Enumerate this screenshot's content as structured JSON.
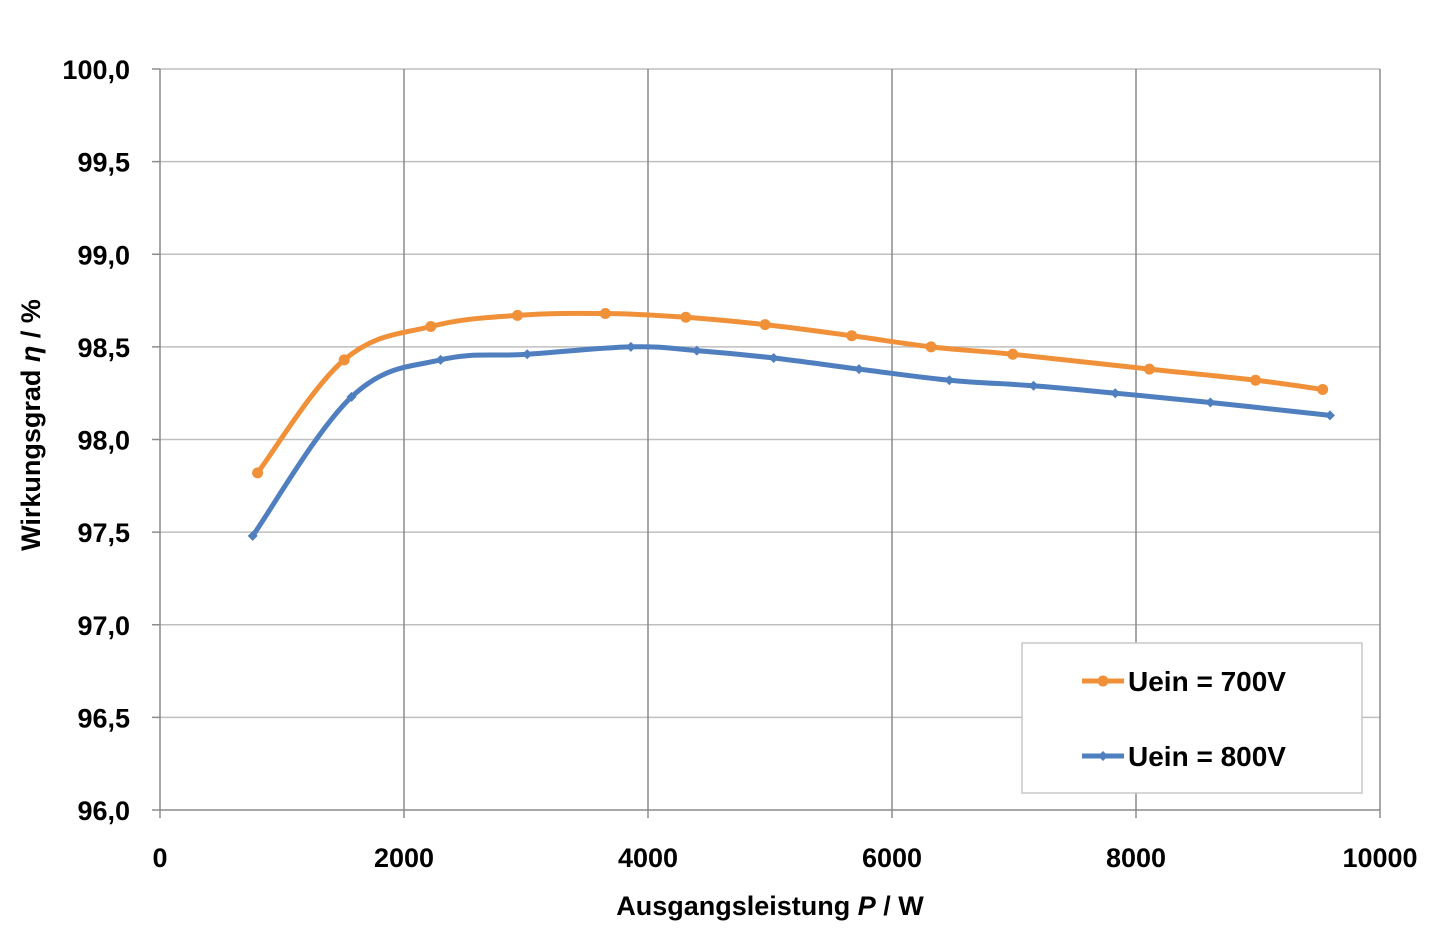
{
  "chart_data": {
    "type": "line",
    "xlabel": "Ausgangsleistung",
    "xlabel_symbol": "P",
    "xlabel_unit": " / W",
    "ylabel": "Wirkungsgrad",
    "ylabel_symbol": "η",
    "ylabel_unit": " / %",
    "xlim": [
      0,
      10000
    ],
    "ylim": [
      96.0,
      100.0
    ],
    "xticks": [
      0,
      2000,
      4000,
      6000,
      8000,
      10000
    ],
    "xtick_labels": [
      "0",
      "2000",
      "4000",
      "6000",
      "8000",
      "10000"
    ],
    "yticks": [
      96.0,
      96.5,
      97.0,
      97.5,
      98.0,
      98.5,
      99.0,
      99.5,
      100.0
    ],
    "ytick_labels": [
      "96,0",
      "96,5",
      "97,0",
      "97,5",
      "98,0",
      "98,5",
      "99,0",
      "99,5",
      "100,0"
    ],
    "grid": true,
    "legend_position": "bottom-right",
    "series": [
      {
        "name": "Uein = 700V",
        "color": "#F0913A",
        "marker": "circle",
        "x": [
          800,
          1510,
          2220,
          2930,
          3650,
          4310,
          4960,
          5670,
          6320,
          6990,
          8110,
          8980,
          9530
        ],
        "y": [
          97.82,
          98.43,
          98.61,
          98.67,
          98.68,
          98.66,
          98.62,
          98.56,
          98.5,
          98.46,
          98.38,
          98.32,
          98.27
        ]
      },
      {
        "name": "Uein = 800V",
        "color": "#4F7FBF",
        "marker": "diamond",
        "x": [
          760,
          1570,
          2300,
          3010,
          3860,
          4400,
          5030,
          5730,
          6470,
          7160,
          7830,
          8610,
          9590
        ],
        "y": [
          97.48,
          98.23,
          98.43,
          98.46,
          98.5,
          98.48,
          98.44,
          98.38,
          98.32,
          98.29,
          98.25,
          98.2,
          98.13
        ]
      }
    ]
  }
}
